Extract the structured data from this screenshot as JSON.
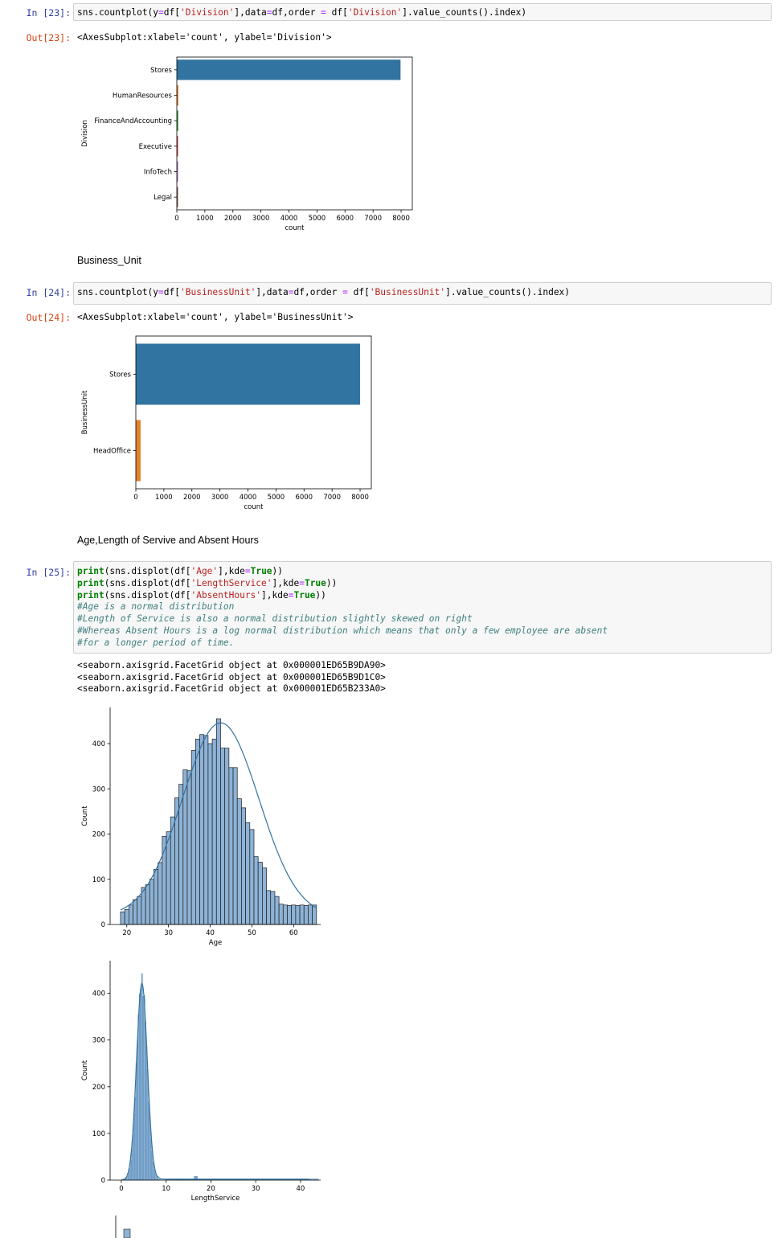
{
  "cells": [
    {
      "prompt_in": "In [23]:",
      "code_lines": [
        "sns.countplot(y=df['Division'],data=df,order = df['Division'].value_counts().index)"
      ],
      "prompt_out": "Out[23]:",
      "output": "<AxesSubplot:xlabel='count', ylabel='Division'>"
    },
    {
      "markdown": "Business_Unit"
    },
    {
      "prompt_in": "In [24]:",
      "code_lines": [
        "sns.countplot(y=df['BusinessUnit'],data=df,order = df['BusinessUnit'].value_counts().index)"
      ],
      "prompt_out": "Out[24]:",
      "output": "<AxesSubplot:xlabel='count', ylabel='BusinessUnit'>"
    },
    {
      "markdown": "Age,Length of Servive and Absent Hours"
    },
    {
      "prompt_in": "In [25]:",
      "code_lines": [
        "print(sns.displot(df['Age'],kde=True))",
        "print(sns.displot(df['LengthService'],kde=True))",
        "print(sns.displot(df['AbsentHours'],kde=True))",
        "#Age is a normal distribution",
        "#Length of Service is also a normal distribution slightly skewed on right",
        "#Whereas Absent Hours is a log normal distribution which means that only a few employee are absent",
        "#for a longer period of time."
      ],
      "stdout": [
        "<seaborn.axisgrid.FacetGrid object at 0x000001ED65B9DA90>",
        "<seaborn.axisgrid.FacetGrid object at 0x000001ED65B9D1C0>",
        "<seaborn.axisgrid.FacetGrid object at 0x000001ED65B233A0>"
      ]
    }
  ],
  "chart_data": [
    {
      "type": "bar",
      "orientation": "horizontal",
      "categories": [
        "Stores",
        "HumanResources",
        "FinanceAndAccounting",
        "Executive",
        "InfoTech",
        "Legal"
      ],
      "values": [
        7980,
        55,
        50,
        5,
        4,
        3
      ],
      "colors": [
        "#3274a1",
        "#e1812c",
        "#3a923a",
        "#c03d3e",
        "#9372b2",
        "#845b53"
      ],
      "xlabel": "count",
      "ylabel": "Division",
      "xticks": [
        0,
        1000,
        2000,
        3000,
        4000,
        5000,
        6000,
        7000,
        8000
      ],
      "xlim": [
        0,
        8400
      ]
    },
    {
      "type": "bar",
      "orientation": "horizontal",
      "categories": [
        "Stores",
        "HeadOffice"
      ],
      "values": [
        8000,
        170
      ],
      "colors": [
        "#3274a1",
        "#e1812c"
      ],
      "xlabel": "count",
      "ylabel": "BusinessUnit",
      "xticks": [
        0,
        1000,
        2000,
        3000,
        4000,
        5000,
        6000,
        7000,
        8000
      ],
      "xlim": [
        0,
        8400
      ]
    },
    {
      "type": "histogram",
      "xlabel": "Age",
      "ylabel": "Count",
      "xticks": [
        20,
        30,
        40,
        50,
        60
      ],
      "yticks": [
        0,
        100,
        200,
        300,
        400
      ],
      "xlim": [
        16,
        66.5
      ],
      "ylim": [
        0,
        480
      ],
      "bin_start": 18.5,
      "bin_width": 1.0,
      "counts": [
        28,
        33,
        43,
        55,
        62,
        82,
        88,
        100,
        122,
        137,
        195,
        205,
        238,
        280,
        310,
        342,
        340,
        385,
        410,
        420,
        418,
        400,
        410,
        455,
        390,
        390,
        347,
        347,
        278,
        258,
        225,
        210,
        150,
        138,
        125,
        75,
        73,
        62,
        45,
        43,
        42,
        43,
        42,
        43,
        42,
        43,
        43
      ],
      "color": "#3274a1"
    },
    {
      "type": "histogram",
      "xlabel": "LengthService",
      "ylabel": "Count",
      "xticks": [
        0,
        10,
        20,
        30,
        40
      ],
      "yticks": [
        0,
        100,
        200,
        300,
        400
      ],
      "xlim": [
        -2.5,
        44.5
      ],
      "ylim": [
        0,
        470
      ],
      "color": "#3274a1"
    }
  ]
}
